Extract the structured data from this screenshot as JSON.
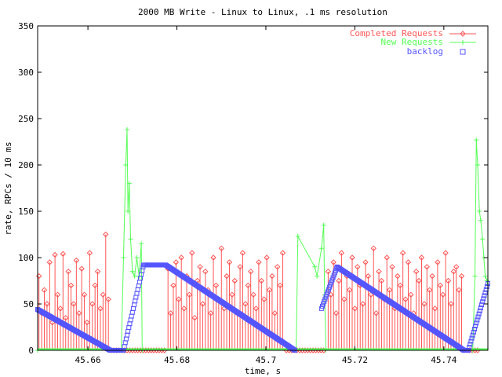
{
  "chart_data": {
    "type": "line",
    "title": "2000 MB Write - Linux to Linux, .1 ms resolution",
    "xlabel": "time, s",
    "ylabel": "rate, RPCs / 10 ms",
    "xlim": [
      45.6487,
      45.7499
    ],
    "ylim": [
      0,
      350
    ],
    "xticks": [
      "45.66",
      "45.68",
      "45.7",
      "45.72",
      "45.74"
    ],
    "yticks": [
      "0",
      "50",
      "100",
      "150",
      "200",
      "250",
      "300",
      "350"
    ],
    "legend_position": "top-right",
    "colors": {
      "completed": "#ff5555",
      "new": "#55ff55",
      "backlog": "#5555ff"
    },
    "series": [
      {
        "name": "Completed Requests",
        "style": "linespoints-diamond",
        "segments": [
          {
            "x0": 45.649,
            "dx": 0.0006,
            "values": [
              80,
              40,
              65,
              50,
              95,
              30,
              103,
              60,
              45,
              104,
              35,
              85,
              70,
              50,
              97,
              40,
              88,
              60,
              30,
              105,
              50,
              70,
              85,
              45,
              60,
              125,
              55
            ]
          },
          {
            "x0": 45.6652,
            "dx": 0.0006,
            "values": [
              0,
              0,
              0,
              0,
              0,
              0,
              0,
              0,
              0,
              0,
              0,
              0,
              0,
              0,
              0,
              0,
              0,
              0,
              0,
              0,
              0
            ]
          },
          {
            "x0": 45.678,
            "dx": 0.0006,
            "values": [
              88,
              40,
              70,
              95,
              55,
              100,
              45,
              80,
              60,
              105,
              35,
              75,
              90,
              50,
              85,
              65,
              40,
              100,
              70,
              55,
              110,
              45,
              80,
              95,
              60,
              75,
              40,
              90,
              105,
              50,
              70,
              85,
              60,
              45,
              95,
              75,
              55,
              100,
              65,
              80,
              40,
              90,
              70,
              105
            ]
          },
          {
            "x0": 45.7046,
            "dx": 0.0006,
            "values": [
              0,
              0,
              0,
              0,
              0,
              0,
              0,
              0,
              0,
              0,
              0,
              0,
              0,
              0,
              0
            ]
          },
          {
            "x0": 45.714,
            "dx": 0.0006,
            "values": [
              85,
              60,
              95,
              40,
              75,
              105,
              55,
              80,
              65,
              100,
              45,
              90,
              70,
              50,
              95,
              80,
              60,
              110,
              40,
              85,
              75,
              55,
              100,
              65,
              90,
              45,
              80,
              70,
              105,
              55,
              95,
              60,
              40,
              85,
              75,
              100,
              50,
              90,
              65,
              80,
              45,
              95,
              70,
              60,
              105,
              75,
              50,
              85,
              90,
              65,
              80
            ]
          },
          {
            "x0": 45.7446,
            "dx": 0.0006,
            "values": [
              0,
              0,
              0,
              0,
              0,
              0
            ]
          }
        ]
      },
      {
        "name": "New Requests",
        "style": "linespoints-plus",
        "points": [
          [
            45.6487,
            0
          ],
          [
            45.6675,
            0
          ],
          [
            45.668,
            100
          ],
          [
            45.6685,
            200
          ],
          [
            45.6688,
            238
          ],
          [
            45.669,
            150
          ],
          [
            45.6693,
            180
          ],
          [
            45.6696,
            120
          ],
          [
            45.67,
            85
          ],
          [
            45.6705,
            80
          ],
          [
            45.671,
            100
          ],
          [
            45.6715,
            80
          ],
          [
            45.672,
            115
          ],
          [
            45.6722,
            0
          ],
          [
            45.7068,
            0
          ],
          [
            45.7072,
            123
          ],
          [
            45.711,
            90
          ],
          [
            45.7115,
            80
          ],
          [
            45.7125,
            110
          ],
          [
            45.713,
            135
          ],
          [
            45.7132,
            60
          ],
          [
            45.7135,
            0
          ],
          [
            45.7465,
            0
          ],
          [
            45.747,
            80
          ],
          [
            45.7473,
            227
          ],
          [
            45.7476,
            200
          ],
          [
            45.748,
            150
          ],
          [
            45.7483,
            140
          ],
          [
            45.7487,
            120
          ],
          [
            45.749,
            100
          ],
          [
            45.7493,
            80
          ],
          [
            45.7497,
            75
          ],
          [
            45.7499,
            70
          ]
        ]
      },
      {
        "name": "backlog",
        "style": "points-square",
        "sample_step": 0.0002,
        "knots": [
          [
            [
              45.6487,
              44
            ],
            [
              45.665,
              0
            ],
            [
              45.668,
              0
            ],
            [
              45.6725,
              92
            ],
            [
              45.6775,
              92
            ],
            [
              45.7065,
              0
            ]
          ],
          [
            [
              45.7125,
              45
            ],
            [
              45.716,
              90
            ],
            [
              45.7445,
              0
            ],
            [
              45.7455,
              0
            ],
            [
              45.7499,
              72
            ]
          ]
        ]
      }
    ]
  }
}
